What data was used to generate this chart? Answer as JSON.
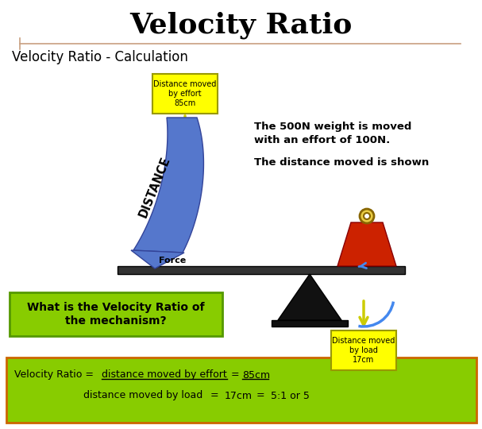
{
  "title": "Velocity Ratio",
  "subtitle": "Velocity Ratio - Calculation",
  "bg_color": "#ffffff",
  "title_color": "#000000",
  "title_fontsize": 26,
  "subtitle_fontsize": 12,
  "orange_line_color": "#c8a080",
  "text_info_line1": "The 500N weight is moved",
  "text_info_line2": "with an effort of 100N.",
  "text_info_line3": "The distance moved is shown",
  "effort_label": "Distance moved\nby effort\n85cm",
  "load_label": "Distance moved\nby load\n17cm",
  "question_text": "What is the Velocity Ratio of\nthe mechanism?",
  "question_bg": "#88cc00",
  "formula_bg": "#cc8800",
  "distance_label": "DISTANCE",
  "force_label": "Force",
  "yellow_box_color": "#ffff00",
  "yellow_border_color": "#cccc00",
  "blue_arrow_color": "#5577cc",
  "lever_color": "#333333",
  "weight_red_color": "#cc2200",
  "weight_black_color": "#111111",
  "circle_color": "#ccaa00",
  "blue_arc_color": "#4488ee"
}
